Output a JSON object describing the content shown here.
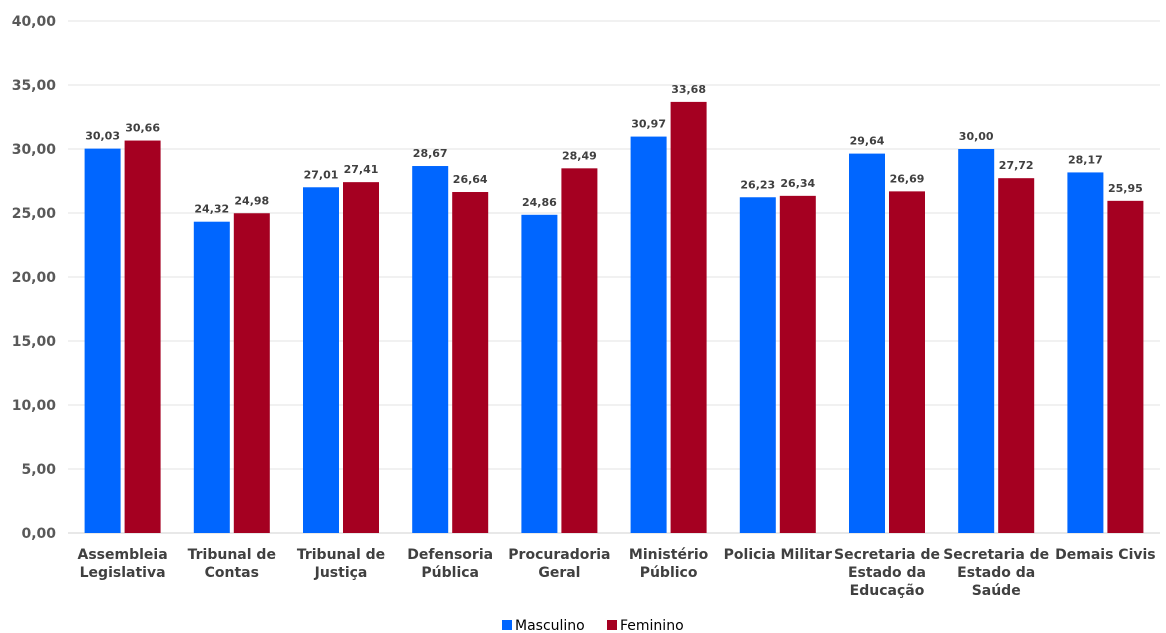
{
  "chart_data": {
    "type": "bar",
    "categories": [
      [
        "Assembleia",
        "Legislativa"
      ],
      [
        "Tribunal de",
        "Contas"
      ],
      [
        "Tribunal de",
        "Justiça"
      ],
      [
        "Defensoria",
        "Pública"
      ],
      [
        "Procuradoria",
        "Geral"
      ],
      [
        "Ministério",
        "Público"
      ],
      [
        "Policia Militar"
      ],
      [
        "Secretaria de",
        "Estado da",
        "Educação"
      ],
      [
        "Secretaria de",
        "Estado da",
        "Saúde"
      ],
      [
        "Demais Civis"
      ]
    ],
    "series": [
      {
        "name": "Masculino",
        "color": "#0066ff",
        "values": [
          30.03,
          24.32,
          27.01,
          28.67,
          24.86,
          30.97,
          26.23,
          29.64,
          30.0,
          28.17
        ],
        "labels": [
          "30,03",
          "24,32",
          "27,01",
          "28,67",
          "24,86",
          "30,97",
          "26,23",
          "29,64",
          "30,00",
          "28,17"
        ]
      },
      {
        "name": "Feminino",
        "color": "#a50021",
        "values": [
          30.66,
          24.98,
          27.41,
          26.64,
          28.49,
          33.68,
          26.34,
          26.69,
          27.72,
          25.95
        ],
        "labels": [
          "30,66",
          "24,98",
          "27,41",
          "26,64",
          "28,49",
          "33,68",
          "26,34",
          "26,69",
          "27,72",
          "25,95"
        ]
      }
    ],
    "ylim": [
      0,
      40
    ],
    "yticks": [
      0,
      5,
      10,
      15,
      20,
      25,
      30,
      35,
      40
    ],
    "ytick_labels": [
      "0,00",
      "5,00",
      "10,00",
      "15,00",
      "20,00",
      "25,00",
      "30,00",
      "35,00",
      "40,00"
    ],
    "grid": true,
    "legend_position": "bottom-center"
  }
}
